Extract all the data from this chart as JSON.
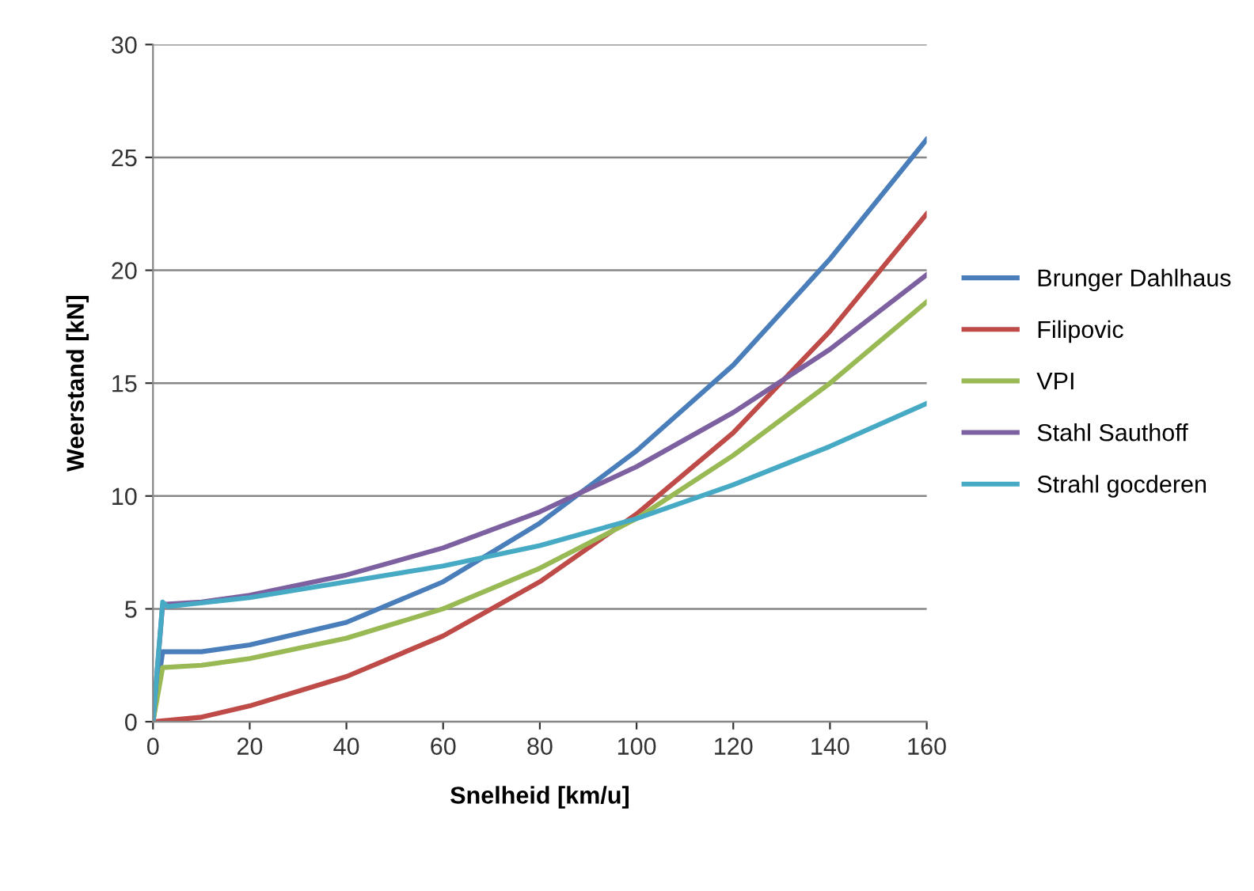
{
  "chart_data": {
    "type": "line",
    "xlabel": "Snelheid [km/u]",
    "ylabel": "Weerstand [kN]",
    "xlim": [
      0,
      160
    ],
    "xticks": [
      0,
      20,
      40,
      60,
      80,
      100,
      120,
      140,
      160
    ],
    "ylim": [
      0,
      30
    ],
    "yticks": [
      0,
      5,
      10,
      15,
      20,
      25,
      30
    ],
    "grid": "y",
    "legend": "right",
    "marker": "none",
    "line_style": "solid",
    "series": [
      {
        "name": "Brunger Dahlhaus",
        "color": "#4a7ebb",
        "x": [
          0,
          2,
          10,
          20,
          40,
          60,
          80,
          100,
          120,
          140,
          160
        ],
        "values": [
          0,
          3.1,
          3.1,
          3.4,
          4.4,
          6.2,
          8.8,
          12.0,
          15.8,
          20.5,
          25.8
        ]
      },
      {
        "name": "Filipovic",
        "color": "#be4b48",
        "x": [
          0,
          10,
          20,
          40,
          60,
          80,
          100,
          120,
          140,
          160
        ],
        "values": [
          0,
          0.2,
          0.7,
          2.0,
          3.8,
          6.2,
          9.2,
          12.8,
          17.3,
          22.5
        ]
      },
      {
        "name": "VPI",
        "color": "#98b954",
        "x": [
          0,
          2,
          10,
          20,
          40,
          60,
          80,
          100,
          120,
          140,
          160
        ],
        "values": [
          0,
          2.4,
          2.5,
          2.8,
          3.7,
          5.0,
          6.8,
          9.0,
          11.8,
          15.0,
          18.6
        ]
      },
      {
        "name": "Stahl Sauthoff",
        "color": "#7d60a0",
        "x": [
          0,
          2,
          10,
          20,
          40,
          60,
          80,
          100,
          120,
          140,
          160
        ],
        "values": [
          0,
          5.2,
          5.3,
          5.6,
          6.5,
          7.7,
          9.3,
          11.3,
          13.7,
          16.5,
          19.8
        ]
      },
      {
        "name": "Strahl gocderen",
        "color": "#46aac5",
        "x": [
          0,
          2,
          3,
          20,
          40,
          60,
          80,
          100,
          120,
          140,
          160
        ],
        "values": [
          0,
          5.3,
          5.1,
          5.5,
          6.2,
          6.9,
          7.8,
          9.0,
          10.5,
          12.2,
          14.1
        ]
      }
    ]
  }
}
